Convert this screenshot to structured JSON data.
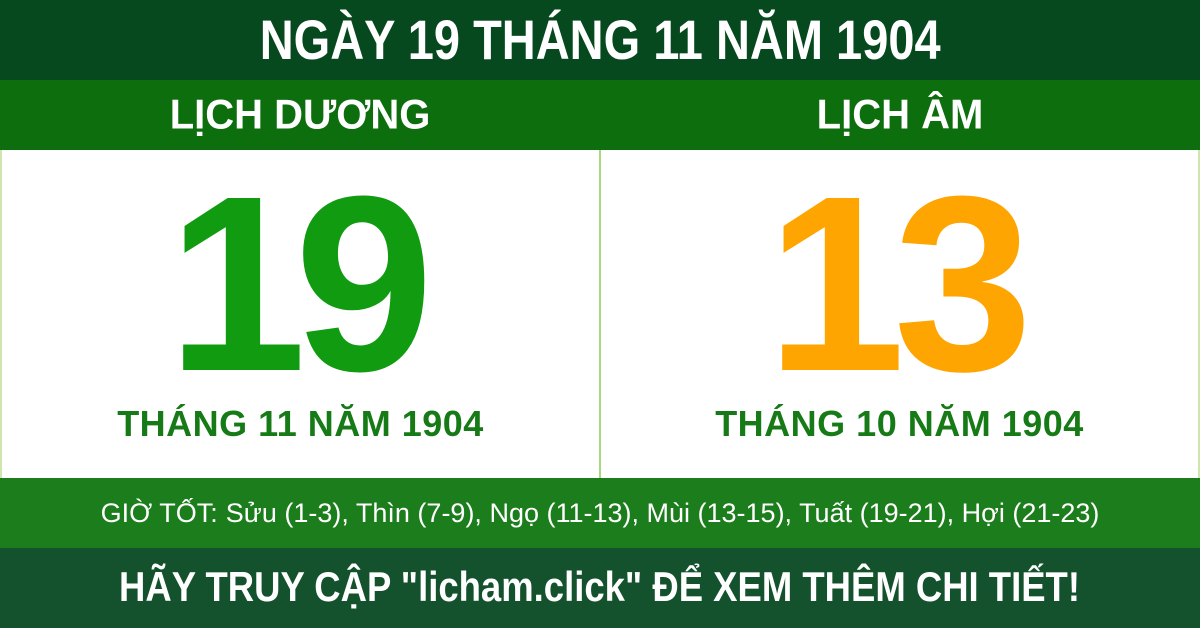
{
  "header": {
    "title": "NGÀY 19 THÁNG 11 NĂM 1904"
  },
  "solar": {
    "heading": "LỊCH DƯƠNG",
    "day": "19",
    "month_year": "THÁNG 11 NĂM 1904"
  },
  "lunar": {
    "heading": "LỊCH ÂM",
    "day": "13",
    "month_year": "THÁNG 10 NĂM 1904"
  },
  "good_hours": {
    "label": "GIỜ TỐT:",
    "text": "Sửu (1-3), Thìn (7-9), Ngọ (11-13), Mùi (13-15), Tuất (19-21), Hợi (21-23)"
  },
  "footer": {
    "message": "HÃY TRUY CẬP \"licham.click\" ĐỂ XEM THÊM CHI TIẾT!"
  },
  "colors": {
    "header_bg": "#07491E",
    "subheader_bg": "#0D6E0D",
    "hours_bg": "#1B7D1B",
    "footer_bg": "#14522E",
    "solar_day": "#109B10",
    "lunar_day": "#FFA502",
    "month_label": "#167A16",
    "divider": "#A9D87E",
    "body_bg": "#FFFFFF",
    "text_on_green": "#FFFFFF"
  }
}
